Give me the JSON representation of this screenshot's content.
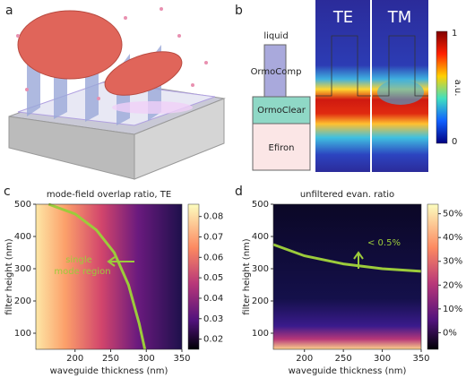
{
  "panels": {
    "a": "a",
    "b": "b",
    "c": "c",
    "d": "d"
  },
  "schematic": {
    "layers": [
      "liquid",
      "OrmoComp",
      "OrmoClear",
      "Efiron"
    ],
    "modes": [
      "TE",
      "TM"
    ],
    "colorbar_ticks": [
      "1",
      "0"
    ],
    "colorbar_label": "a.u."
  },
  "chart_data": [
    {
      "type": "heatmap",
      "title": "mode-field overlap ratio, TE",
      "x_label": "waveguide thickness (nm)",
      "y_label": "filter height (nm)",
      "xlim": [
        145,
        350
      ],
      "xticks": [
        200,
        250,
        300,
        350
      ],
      "ylim": [
        50,
        500
      ],
      "yticks": [
        100,
        200,
        300,
        400,
        500
      ],
      "colorbar_lim": [
        0.015,
        0.086
      ],
      "colorbar_ticks": [
        0.02,
        0.03,
        0.04,
        0.05,
        0.06,
        0.07,
        0.08
      ],
      "series": [
        {
          "color": "#9ccb3b",
          "x": [
            163,
            200,
            230,
            255,
            275,
            290,
            298
          ],
          "values": [
            500,
            470,
            420,
            350,
            250,
            130,
            50
          ]
        }
      ],
      "annotation": [
        "single",
        "mode region"
      ]
    },
    {
      "type": "heatmap",
      "title": "unfiltered evan. ratio",
      "x_label": "waveguide thickness (nm)",
      "y_label": "filter height (nm)",
      "xlim": [
        160,
        350
      ],
      "xticks": [
        200,
        250,
        300,
        350
      ],
      "ylim": [
        50,
        500
      ],
      "yticks": [
        100,
        200,
        300,
        400,
        500
      ],
      "colorbar_lim": [
        -7,
        54
      ],
      "colorbar_ticks": [
        {
          "value": 0,
          "label": "0%"
        },
        {
          "value": 10,
          "label": "10%"
        },
        {
          "value": 20,
          "label": "20%"
        },
        {
          "value": 30,
          "label": "30%"
        },
        {
          "value": 40,
          "label": "40%"
        },
        {
          "value": 50,
          "label": "50%"
        }
      ],
      "series": [
        {
          "color": "#9ccb3b",
          "x": [
            160,
            200,
            250,
            300,
            350
          ],
          "values": [
            375,
            340,
            315,
            300,
            292
          ]
        }
      ],
      "annotation": [
        "< 0.5%"
      ]
    }
  ]
}
